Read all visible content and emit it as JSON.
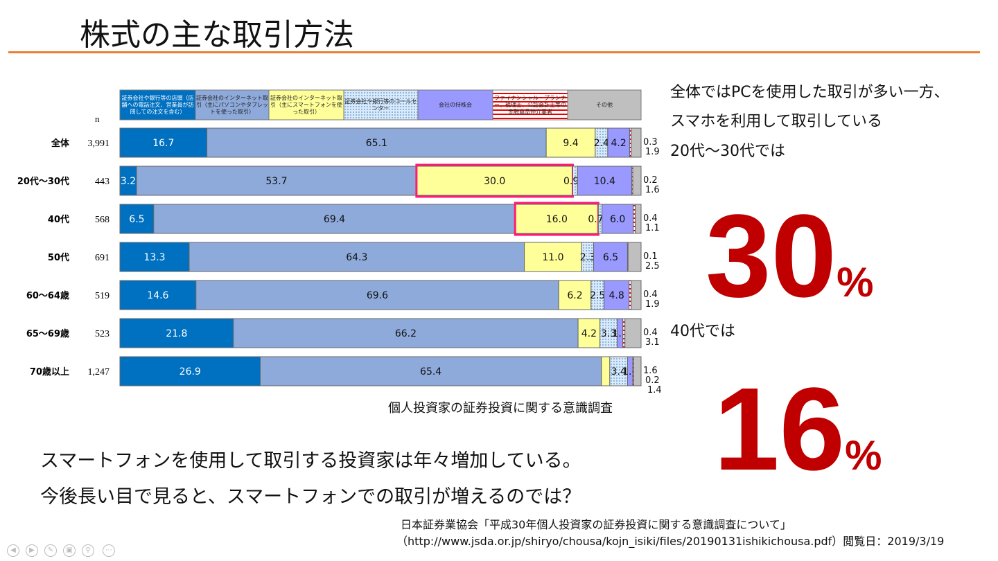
{
  "title": "株式の主な取引方法",
  "chart_data": {
    "type": "bar",
    "orientation": "horizontal",
    "stacked": true,
    "unit": "%",
    "n_label": "n",
    "legend": [
      "証券会社や銀行等の店頭（店舗への電話注文、営業員が訪問しての注文を含む）",
      "証券会社のインターネット取引（主にパソコンやタブレットを使った取引）",
      "証券会社のインターネット取引（主にスマートフォンを使った取引）",
      "証券会社や銀行等のコールセンター",
      "会社の持株会",
      "ファイナンシャル・プランナー、税理士、公認会計士等の金融商品仲介業者",
      "その他"
    ],
    "colors": [
      "#0070c0",
      "#8eaadb",
      "#ffff99",
      "#dbe9f9",
      "#9999ff",
      "#ffffff",
      "#bfbfbf"
    ],
    "categories": [
      "全体",
      "20代～30代",
      "40代",
      "50代",
      "60～64歳",
      "65～69歳",
      "70歳以上"
    ],
    "n": [
      "3,991",
      "443",
      "568",
      "691",
      "519",
      "523",
      "1,247"
    ],
    "rows": [
      [
        16.7,
        65.1,
        9.4,
        2.4,
        4.2,
        0.3,
        1.9
      ],
      [
        3.2,
        53.7,
        30.0,
        0.9,
        10.4,
        0.2,
        1.6
      ],
      [
        6.5,
        69.4,
        16.0,
        0.7,
        6.0,
        0.4,
        1.1
      ],
      [
        13.3,
        64.3,
        11.0,
        2.3,
        6.5,
        0.1,
        2.5
      ],
      [
        14.6,
        69.6,
        6.2,
        2.5,
        4.8,
        0.4,
        1.9
      ],
      [
        21.8,
        66.2,
        4.2,
        3.3,
        1.1,
        0.4,
        3.1
      ],
      [
        26.9,
        65.4,
        1.6,
        3.4,
        1.0,
        0.2,
        1.4
      ]
    ],
    "highlights": [
      [
        1,
        2
      ],
      [
        2,
        2
      ]
    ],
    "caption": "個人投資家の証券投資に関する意識調査"
  },
  "right": {
    "line1": "全体ではPCを使用した取引が多い一方、",
    "line2": "スマホを利用して取引している",
    "line3": "20代～30代では",
    "big1": "30",
    "pct": "%",
    "line4": "40代では",
    "big2": "16"
  },
  "body": {
    "line1": "スマートフォンを使用して取引する投資家は年々増加している。",
    "line2": "今後長い目で見ると、スマートフォンでの取引が増えるのでは？"
  },
  "source": {
    "line1": "日本証券業協会「平成30年個人投資家の証券投資に関する意識調査について」",
    "line2": "（http://www.jsda.or.jp/shiryo/chousa/kojn_isiki/files/20190131ishikichousa.pdf）閲覧日：2019/3/19"
  }
}
